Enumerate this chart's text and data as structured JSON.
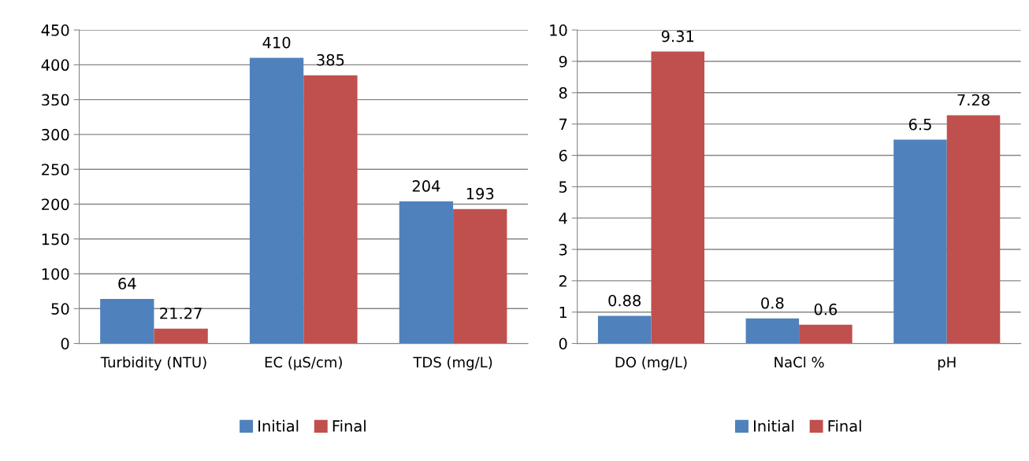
{
  "chart_data": [
    {
      "type": "bar",
      "categories": [
        "Turbidity (NTU)",
        "EC (µS/cm)",
        "TDS (mg/L)"
      ],
      "series": [
        {
          "name": "Initial",
          "color": "#4f81bd",
          "values": [
            64,
            410,
            204
          ]
        },
        {
          "name": "Final",
          "color": "#c0504d",
          "values": [
            21.27,
            385,
            193
          ]
        }
      ],
      "ylim": [
        0,
        450
      ],
      "yticks": [
        0,
        50,
        100,
        150,
        200,
        250,
        300,
        350,
        400,
        450
      ],
      "grid": "y",
      "legend": "bottom",
      "data_labels": true
    },
    {
      "type": "bar",
      "categories": [
        "DO (mg/L)",
        "NaCl %",
        "pH"
      ],
      "series": [
        {
          "name": "Initial",
          "color": "#4f81bd",
          "values": [
            0.88,
            0.8,
            6.5
          ]
        },
        {
          "name": "Final",
          "color": "#c0504d",
          "values": [
            9.31,
            0.6,
            7.28
          ]
        }
      ],
      "ylim": [
        0,
        10
      ],
      "yticks": [
        0,
        1,
        2,
        3,
        4,
        5,
        6,
        7,
        8,
        9,
        10
      ],
      "grid": "y",
      "legend": "bottom",
      "data_labels": true
    }
  ]
}
